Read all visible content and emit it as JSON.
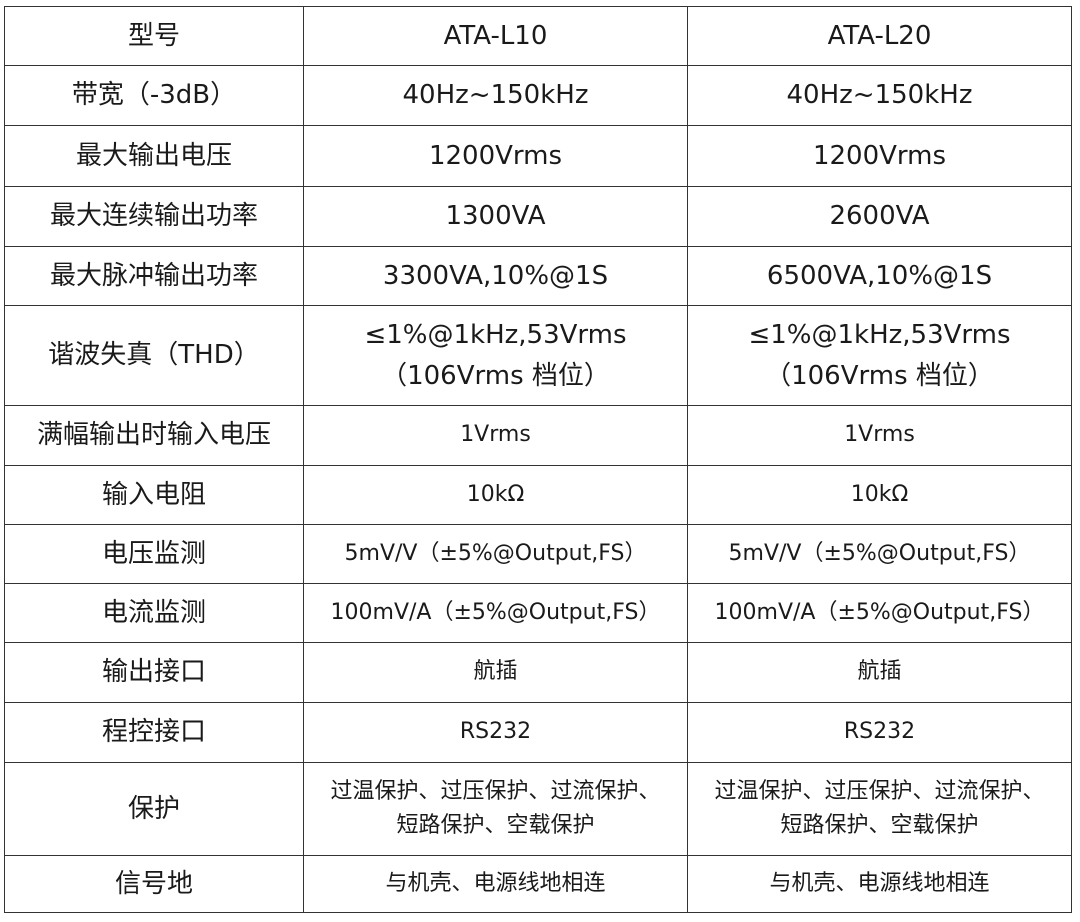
{
  "columns": [
    "型号",
    "ATA-L10",
    "ATA-L20"
  ],
  "rows": [
    {
      "label": "带宽（-3dB）",
      "l10": [
        "40Hz~150kHz"
      ],
      "l20": [
        "40Hz~150kHz"
      ]
    },
    {
      "label": "最大输出电压",
      "l10": [
        "1200Vrms"
      ],
      "l20": [
        "1200Vrms"
      ]
    },
    {
      "label": "最大连续输出功率",
      "l10": [
        "1300VA"
      ],
      "l20": [
        "2600VA"
      ]
    },
    {
      "label": "最大脉冲输出功率",
      "l10": [
        "3300VA,10%@1S"
      ],
      "l20": [
        "6500VA,10%@1S"
      ]
    },
    {
      "label": "谐波失真（THD）",
      "l10": [
        "≤1%@1kHz,53Vrms",
        "（106Vrms 档位）"
      ],
      "l20": [
        "≤1%@1kHz,53Vrms",
        "（106Vrms 档位）"
      ]
    },
    {
      "label": "满幅输出时输入电压",
      "l10": [
        "1Vrms"
      ],
      "l20": [
        "1Vrms"
      ]
    },
    {
      "label": "输入电阻",
      "l10": [
        "10kΩ"
      ],
      "l20": [
        "10kΩ"
      ]
    },
    {
      "label": "电压监测",
      "l10": [
        "5mV/V（±5%@Output,FS）"
      ],
      "l20": [
        "5mV/V（±5%@Output,FS）"
      ]
    },
    {
      "label": "电流监测",
      "l10": [
        "100mV/A（±5%@Output,FS）"
      ],
      "l20": [
        "100mV/A（±5%@Output,FS）"
      ]
    },
    {
      "label": "输出接口",
      "l10": [
        "航插"
      ],
      "l20": [
        "航插"
      ]
    },
    {
      "label": "程控接口",
      "l10": [
        "RS232"
      ],
      "l20": [
        "RS232"
      ]
    },
    {
      "label": "保护",
      "l10": [
        "过温保护、过压保护、过流保护、",
        "短路保护、空载保护"
      ],
      "l20": [
        "过温保护、过压保护、过流保护、",
        "短路保护、空载保护"
      ]
    },
    {
      "label": "信号地",
      "l10": [
        "与机壳、电源线地相连"
      ],
      "l20": [
        "与机壳、电源线地相连"
      ]
    }
  ]
}
